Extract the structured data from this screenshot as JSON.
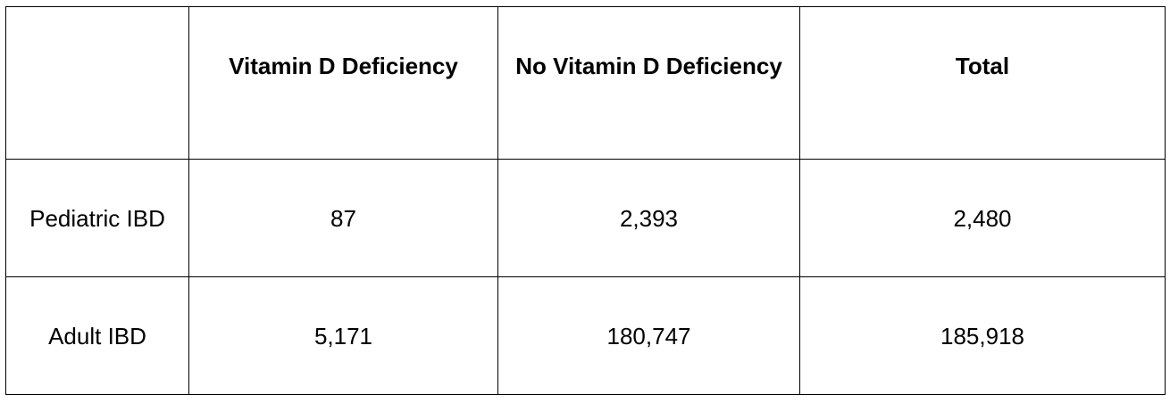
{
  "table": {
    "columns": [
      "",
      "Vitamin D Deficiency",
      "No Vitamin D Deficiency",
      "Total"
    ],
    "rows": [
      {
        "label": "Pediatric IBD",
        "values": [
          "87",
          "2,393",
          "2,480"
        ]
      },
      {
        "label": "Adult IBD",
        "values": [
          "5,171",
          "180,747",
          "185,918"
        ]
      }
    ]
  }
}
